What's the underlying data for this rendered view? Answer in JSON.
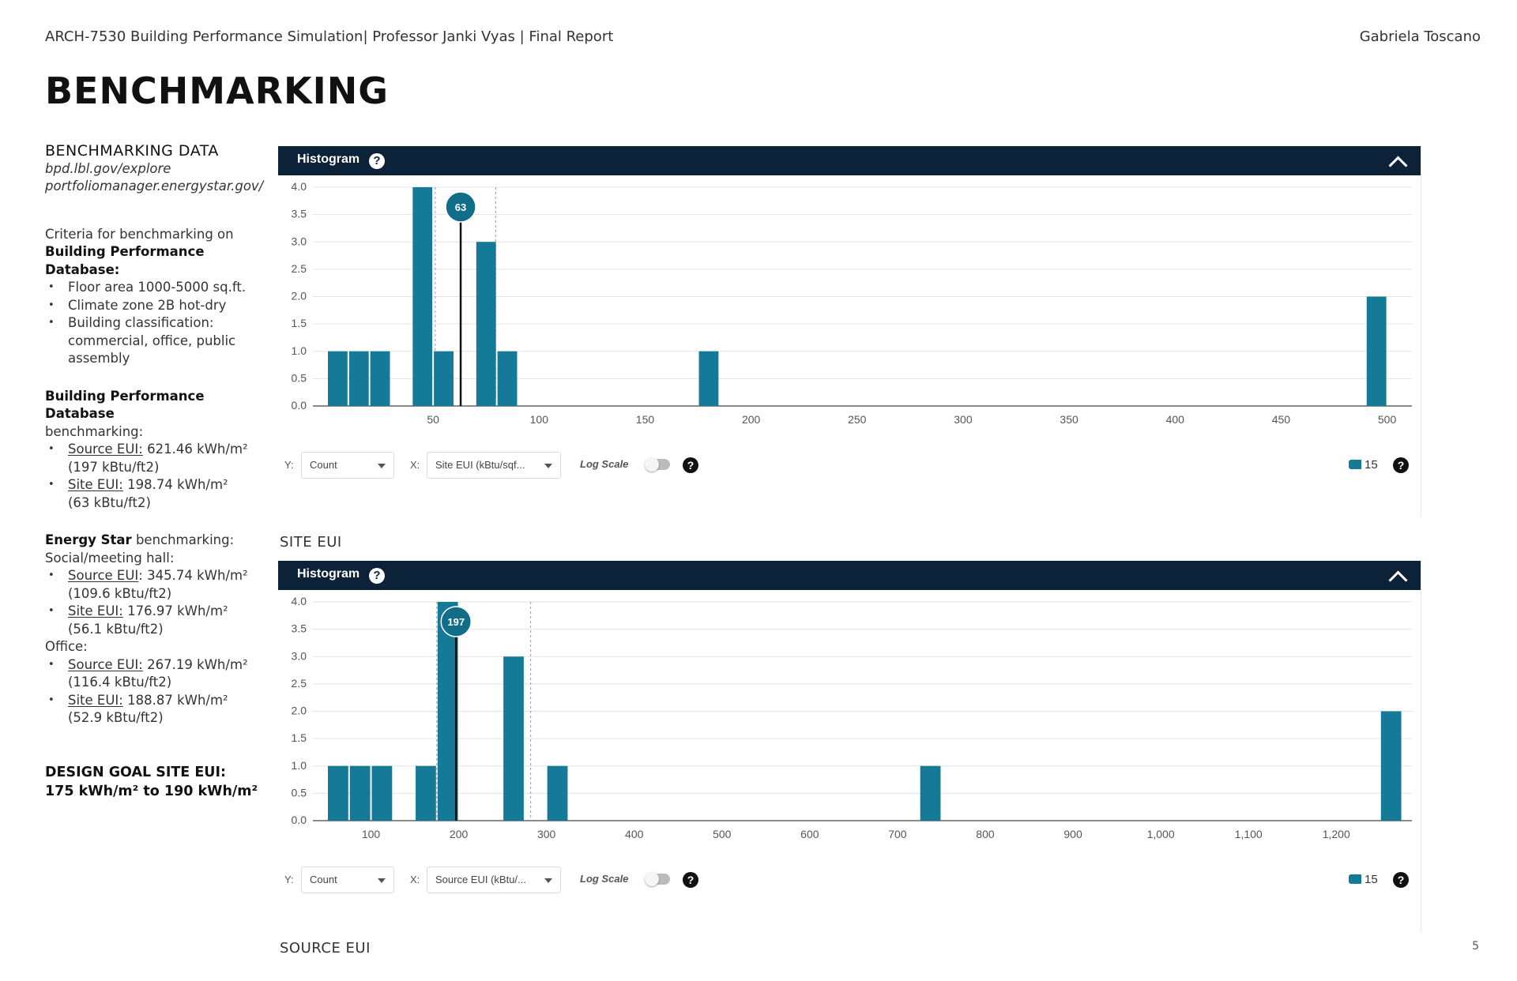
{
  "header": {
    "course": "ARCH-7530 Building Performance Simulation| Professor Janki Vyas | Final Report",
    "author": "Gabriela Toscano"
  },
  "page_title": "BENCHMARKING",
  "page_number": "5",
  "sidebar": {
    "heading": "BENCHMARKING DATA",
    "link1": "bpd.lbl.gov/explore",
    "link2": "portfoliomanager.energystar.gov/",
    "criteria_intro": "Criteria for benchmarking on",
    "criteria_db": "Building Performance Database:",
    "criteria": [
      "Floor area 1000-5000 sq.ft.",
      "Climate zone 2B hot-dry",
      "Building classification: commercial, office, public assembly"
    ],
    "bpd_heading": "Building Performance Database",
    "bpd_sub": "benchmarking:",
    "bpd_source_label": "Source EUI:",
    "bpd_source_val": " 621.46 kWh/m²",
    "bpd_source_sub": "(197 kBtu/ft2)",
    "bpd_site_label": "Site EUI:",
    "bpd_site_val": " 198.74 kWh/m²",
    "bpd_site_sub": "(63 kBtu/ft2)",
    "es_bold": "Energy Star",
    "es_rest": " benchmarking:",
    "es_social": "Social/meeting hall:",
    "es_social_source_label": "Source EUI",
    "es_social_source_val": ": 345.74 kWh/m²",
    "es_social_source_sub": "(109.6 kBtu/ft2)",
    "es_social_site_label": "Site EUI:",
    "es_social_site_val": " 176.97 kWh/m²",
    "es_social_site_sub": "(56.1 kBtu/ft2)",
    "es_office": "Office:",
    "es_office_source_label": "Source EUI:",
    "es_office_source_val": " 267.19 kWh/m²",
    "es_office_source_sub": "(116.4 kBtu/ft2)",
    "es_office_site_label": "Site EUI:",
    "es_office_site_val": " 188.87 kWh/m²",
    "es_office_site_sub": "(52.9 kBtu/ft2)",
    "goal_line1": "DESIGN GOAL SITE EUI:",
    "goal_line2": "175 kWh/m² to 190 kWh/m²"
  },
  "panels": [
    {
      "header": "Histogram",
      "help": "?",
      "y_label": "Y:",
      "y_value": "Count",
      "x_label": "X:",
      "x_value": "Site EUI (kBtu/sqf...",
      "log_scale": "Log Scale",
      "bins": "15",
      "caption": "SITE EUI"
    },
    {
      "header": "Histogram",
      "help": "?",
      "y_label": "Y:",
      "y_value": "Count",
      "x_label": "X:",
      "x_value": "Source EUI (kBtu/...",
      "log_scale": "Log Scale",
      "bins": "15",
      "caption": "SOURCE EUI"
    }
  ],
  "chart_data": [
    {
      "type": "bar",
      "xlim": [
        0,
        505
      ],
      "ylim": [
        0,
        4
      ],
      "x_ticks": [
        "50",
        "100",
        "150",
        "200",
        "250",
        "300",
        "350",
        "400",
        "450",
        "500"
      ],
      "x_tick_values": [
        50,
        100,
        150,
        200,
        250,
        300,
        350,
        400,
        450,
        500
      ],
      "y_ticks": [
        "0.0",
        "0.5",
        "1.0",
        "1.5",
        "2.0",
        "2.5",
        "3.0",
        "3.5",
        "4.0"
      ],
      "bar_width": 10,
      "bars": [
        {
          "x": 5,
          "value": 1
        },
        {
          "x": 15,
          "value": 1
        },
        {
          "x": 25,
          "value": 1
        },
        {
          "x": 45,
          "value": 4
        },
        {
          "x": 55,
          "value": 1
        },
        {
          "x": 75,
          "value": 3
        },
        {
          "x": 85,
          "value": 1
        },
        {
          "x": 180,
          "value": 1
        },
        {
          "x": 495,
          "value": 2
        }
      ],
      "marker": {
        "x": 63,
        "label": "63"
      },
      "reference_lines": [
        51,
        79.5
      ],
      "color": "#147a97"
    },
    {
      "type": "bar",
      "xlim": [
        50,
        1270
      ],
      "ylim": [
        0,
        4
      ],
      "x_ticks": [
        "100",
        "200",
        "300",
        "400",
        "500",
        "600",
        "700",
        "800",
        "900",
        "1,000",
        "1,100",
        "1,200"
      ],
      "x_tick_values": [
        100,
        200,
        300,
        400,
        500,
        600,
        700,
        800,
        900,
        1000,
        1100,
        1200
      ],
      "y_ticks": [
        "0.0",
        "0.5",
        "1.0",
        "1.5",
        "2.0",
        "2.5",
        "3.0",
        "3.5",
        "4.0"
      ],
      "bar_width": 25,
      "bars": [
        {
          "x": 62.5,
          "value": 1
        },
        {
          "x": 87.5,
          "value": 1
        },
        {
          "x": 112.5,
          "value": 1
        },
        {
          "x": 162.5,
          "value": 1
        },
        {
          "x": 187.5,
          "value": 4
        },
        {
          "x": 262.5,
          "value": 3
        },
        {
          "x": 312.5,
          "value": 1
        },
        {
          "x": 737.5,
          "value": 1
        },
        {
          "x": 1262.5,
          "value": 2
        }
      ],
      "marker": {
        "x": 197,
        "label": "197"
      },
      "reference_lines": [
        175,
        282
      ],
      "color": "#147a97"
    }
  ]
}
